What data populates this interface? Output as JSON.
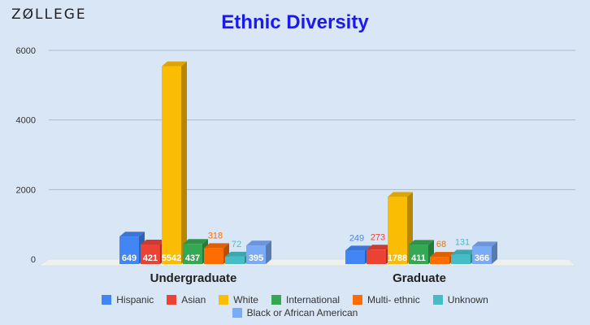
{
  "logo": {
    "text": "ZØLLEGE"
  },
  "chart_data": {
    "type": "bar",
    "title": "Ethnic Diversity",
    "categories": [
      "Undergraduate",
      "Graduate"
    ],
    "series": [
      {
        "name": "Hispanic",
        "color": "#4285f4",
        "values": [
          649,
          249
        ]
      },
      {
        "name": "Asian",
        "color": "#ea4335",
        "values": [
          421,
          273
        ]
      },
      {
        "name": "White",
        "color": "#fbbc04",
        "values": [
          5542,
          1788
        ]
      },
      {
        "name": "International",
        "color": "#34a853",
        "values": [
          437,
          411
        ]
      },
      {
        "name": "Multi- ethnic",
        "color": "#ff6d01",
        "values": [
          318,
          68
        ]
      },
      {
        "name": "Unknown",
        "color": "#46bdc6",
        "values": [
          72,
          131
        ]
      },
      {
        "name": "Black or African American",
        "color": "#7baaf7",
        "values": [
          395,
          366
        ]
      }
    ],
    "yticks": [
      "0",
      "2000",
      "4000",
      "6000"
    ],
    "ylim": [
      0,
      6000
    ],
    "grid": true,
    "legend_position": "bottom"
  }
}
